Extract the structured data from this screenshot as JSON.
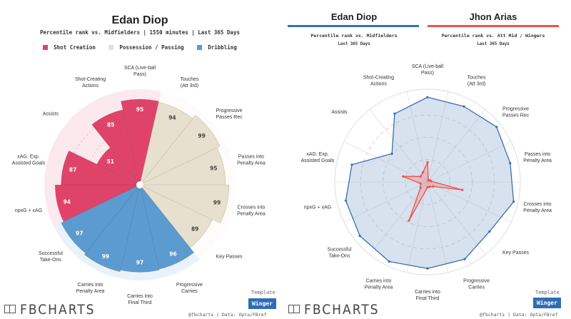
{
  "left": {
    "title": "Edan Diop",
    "subtitle": "Percentile rank vs. Midfielders | 1550 minutes | Last 365 Days",
    "legend": [
      {
        "label": "Shot Creation",
        "color": "#e0436a"
      },
      {
        "label": "Possession / Passing",
        "color": "#e7e0cf"
      },
      {
        "label": "Dribbling",
        "color": "#5b9bd0"
      }
    ]
  },
  "right": {
    "players": [
      {
        "name": "Edan Diop",
        "color": "#3a6fb0",
        "subtitle": "Percentile rank vs. Midfielders",
        "period": "Last 365 Days"
      },
      {
        "name": "Jhon Arias",
        "color": "#f0504a",
        "subtitle": "Percentile rank vs. Att Mid / Wingers",
        "period": "Last 365 Days"
      }
    ]
  },
  "footer": {
    "logo": "FBCHARTS",
    "template_label": "Template",
    "template_value": "Winger",
    "credit": "@fbcharts | Data: Opta/FBref"
  },
  "chart_data": [
    {
      "type": "bar",
      "subtype": "polar-pizza",
      "title": "Edan Diop",
      "subtitle": "Percentile rank vs. Midfielders | 1550 minutes | Last 365 Days",
      "rlim": [
        0,
        100
      ],
      "categories": [
        "SCA (Live-ball Pass)",
        "Touches (Att 3rd)",
        "Progressive Passes Rec",
        "Passes into Penalty Area",
        "Crosses into Penalty Area",
        "Key Passes",
        "Progressive Carries",
        "Carries into Final Third",
        "Carries into Penalty Area",
        "Successful Take-Ons",
        "npxG + xAG",
        "xAG: Exp. Assisted Goals",
        "Assists",
        "Shot-Creating Actions"
      ],
      "groups": [
        "Shot Creation",
        "Possession / Passing",
        "Possession / Passing",
        "Possession / Passing",
        "Possession / Passing",
        "Possession / Passing",
        "Dribbling",
        "Dribbling",
        "Dribbling",
        "Dribbling",
        "Shot Creation",
        "Shot Creation",
        "Shot Creation",
        "Shot Creation"
      ],
      "values": [
        95,
        94,
        99,
        95,
        99,
        89,
        96,
        97,
        99,
        97,
        94,
        87,
        51,
        85
      ],
      "legend": "top"
    },
    {
      "type": "radar",
      "title": "Edan Diop vs Jhon Arias",
      "rlim": [
        0,
        100
      ],
      "categories": [
        "SCA (Live-ball Pass)",
        "Touches (Att 3rd)",
        "Progressive Passes Rec",
        "Passes into Penalty Area",
        "Crosses into Penalty Area",
        "Key Passes",
        "Progressive Carries",
        "Carries into Final Third",
        "Carries into Penalty Area",
        "Successful Take-Ons",
        "npxG + xAG",
        "xAG: Exp. Assisted Goals",
        "Assists",
        "Shot-Creating Actions"
      ],
      "series": [
        {
          "name": "Edan Diop",
          "values": [
            95,
            94,
            99,
            95,
            99,
            89,
            96,
            97,
            99,
            97,
            94,
            87,
            51,
            85
          ]
        },
        {
          "name": "Jhon Arias",
          "values": [
            22,
            2,
            3,
            4,
            40,
            8,
            6,
            6,
            48,
            10,
            8,
            28,
            10,
            12
          ]
        }
      ],
      "legend": "top"
    }
  ]
}
